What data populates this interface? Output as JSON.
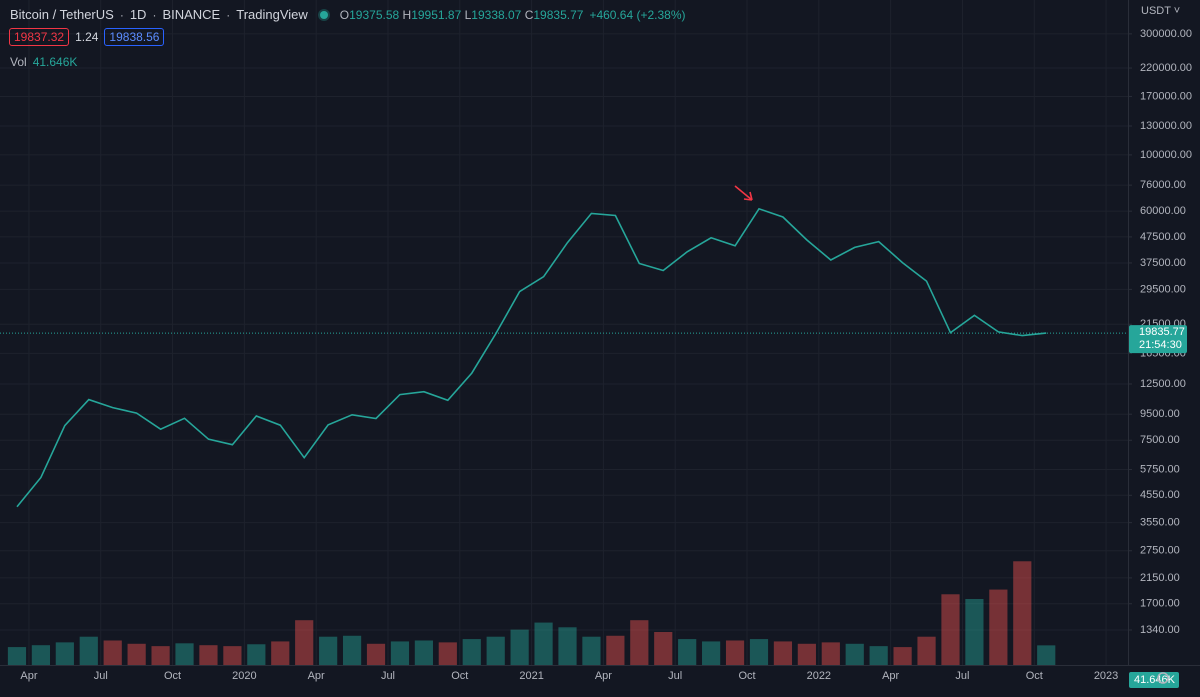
{
  "header": {
    "symbol": "Bitcoin / TetherUS",
    "interval": "1D",
    "exchange": "BINANCE",
    "source": "TradingView",
    "ohlc": [
      {
        "label": "O",
        "value": "19375.58"
      },
      {
        "label": "H",
        "value": "19951.87"
      },
      {
        "label": "L",
        "value": "19338.07"
      },
      {
        "label": "C",
        "value": "19835.77"
      }
    ],
    "change": "+460.64 (+2.38%)",
    "bid": "19837.32",
    "spread": "1.24",
    "ask": "19838.56",
    "volume_label": "Vol",
    "volume_value": "41.646K",
    "currency": "USDT",
    "countdown": "21:54:30"
  },
  "chart_data": {
    "type": "line",
    "log_scale": true,
    "grid": true,
    "x": [
      "2019-03",
      "2019-04",
      "2019-05",
      "2019-06",
      "2019-07",
      "2019-08",
      "2019-09",
      "2019-10",
      "2019-11",
      "2019-12",
      "2020-01",
      "2020-02",
      "2020-03",
      "2020-04",
      "2020-05",
      "2020-06",
      "2020-07",
      "2020-08",
      "2020-09",
      "2020-10",
      "2020-11",
      "2020-12",
      "2021-01",
      "2021-02",
      "2021-03",
      "2021-04",
      "2021-05",
      "2021-06",
      "2021-07",
      "2021-08",
      "2021-09",
      "2021-10",
      "2021-11",
      "2021-12",
      "2022-01",
      "2022-02",
      "2022-03",
      "2022-04",
      "2022-05",
      "2022-06",
      "2022-07",
      "2022-08",
      "2022-09",
      "2022-10"
    ],
    "series": [
      {
        "color": "#26a69a",
        "values": [
          4100,
          5350,
          8570,
          10850,
          10090,
          9600,
          8290,
          9150,
          7570,
          7200,
          9350,
          8600,
          6400,
          8620,
          9450,
          9140,
          11350,
          11650,
          10780,
          13800,
          19700,
          28900,
          33100,
          45100,
          58800,
          57700,
          37300,
          35000,
          41500,
          47100,
          43800,
          61300,
          56900,
          46200,
          38500,
          43200,
          45500,
          37600,
          31800,
          19900,
          23300,
          20050,
          19400,
          19835.77
        ]
      },
      {
        "axis": "y2",
        "color": "#26a69a",
        "down_color": "#ef5350",
        "values": [
          38000,
          42000,
          48000,
          60000,
          52000,
          45000,
          40000,
          46000,
          42000,
          40000,
          44000,
          50000,
          95000,
          60000,
          62000,
          45000,
          50000,
          52000,
          48000,
          55000,
          60000,
          75000,
          90000,
          80000,
          60000,
          62000,
          95000,
          70000,
          55000,
          50000,
          52000,
          55000,
          50000,
          45000,
          48000,
          45000,
          40000,
          38000,
          60000,
          150000,
          140000,
          160000,
          220000,
          41646
        ]
      }
    ],
    "xlim": [
      "2019-03",
      "2023-02"
    ],
    "xticks": [
      {
        "value": "2019-04",
        "label": "Apr"
      },
      {
        "value": "2019-07",
        "label": "Jul"
      },
      {
        "value": "2019-10",
        "label": "Oct"
      },
      {
        "value": "2020-01",
        "label": "2020"
      },
      {
        "value": "2020-04",
        "label": "Apr"
      },
      {
        "value": "2020-07",
        "label": "Jul"
      },
      {
        "value": "2020-10",
        "label": "Oct"
      },
      {
        "value": "2021-01",
        "label": "2021"
      },
      {
        "value": "2021-04",
        "label": "Apr"
      },
      {
        "value": "2021-07",
        "label": "Jul"
      },
      {
        "value": "2021-10",
        "label": "Oct"
      },
      {
        "value": "2022-01",
        "label": "2022"
      },
      {
        "value": "2022-04",
        "label": "Apr"
      },
      {
        "value": "2022-07",
        "label": "Jul"
      },
      {
        "value": "2022-10",
        "label": "Oct"
      },
      {
        "value": "2023-01",
        "label": "2023"
      }
    ],
    "ylim": [
      975,
      408000
    ],
    "yticks": [
      {
        "value": 300000,
        "label": "300000.00"
      },
      {
        "value": 220000,
        "label": "220000.00"
      },
      {
        "value": 170000,
        "label": "170000.00"
      },
      {
        "value": 130000,
        "label": "130000.00"
      },
      {
        "value": 100000,
        "label": "100000.00"
      },
      {
        "value": 76000,
        "label": "76000.00"
      },
      {
        "value": 60000,
        "label": "60000.00"
      },
      {
        "value": 47500,
        "label": "47500.00"
      },
      {
        "value": 37500,
        "label": "37500.00"
      },
      {
        "value": 29500,
        "label": "29500.00"
      },
      {
        "value": 21500,
        "label": "21500.00"
      },
      {
        "value": 16500,
        "label": "16500.00"
      },
      {
        "value": 12500,
        "label": "12500.00"
      },
      {
        "value": 9500,
        "label": "9500.00"
      },
      {
        "value": 7500,
        "label": "7500.00"
      },
      {
        "value": 5750,
        "label": "5750.00"
      },
      {
        "value": 4550,
        "label": "4550.00"
      },
      {
        "value": 3550,
        "label": "3550.00"
      },
      {
        "value": 2750,
        "label": "2750.00"
      },
      {
        "value": 2150,
        "label": "2150.00"
      },
      {
        "value": 1700,
        "label": "1700.00"
      },
      {
        "value": 1340,
        "label": "1340.00"
      }
    ],
    "y2lim": [
      0,
      700000
    ],
    "last_price": 19835.77
  }
}
